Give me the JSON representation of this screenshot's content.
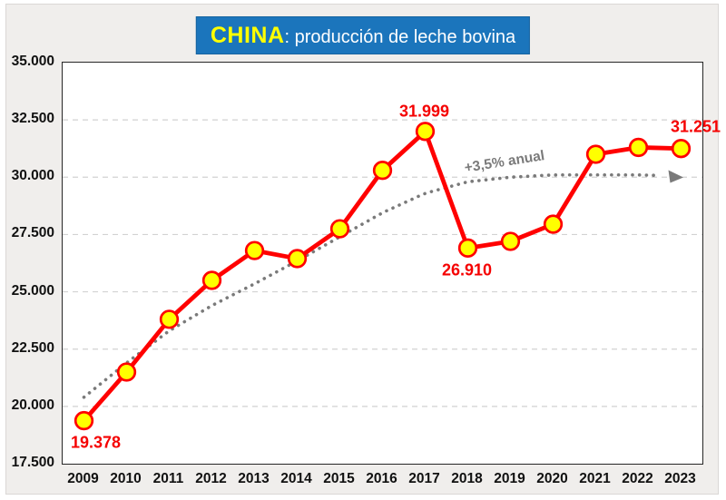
{
  "title": {
    "highlight": "CHINA",
    "rest": ": producción de leche bovina",
    "bg_color": "#1B75BC",
    "highlight_color": "#FFFF00",
    "text_color": "#FFFFFF"
  },
  "chart_data": {
    "type": "line",
    "title": "CHINA: producción de leche bovina",
    "categories": [
      "2009",
      "2010",
      "2011",
      "2012",
      "2013",
      "2014",
      "2015",
      "2016",
      "2017",
      "2018",
      "2019",
      "2020",
      "2021",
      "2022",
      "2023"
    ],
    "series": [
      {
        "name": "Producción de leche bovina",
        "color": "#FF0000",
        "marker": "circle",
        "marker_fill": "#FFFF00",
        "values": [
          19378,
          21500,
          23800,
          25500,
          26800,
          26450,
          27750,
          30300,
          31999,
          26910,
          27200,
          27950,
          31000,
          31300,
          31251
        ]
      }
    ],
    "point_labels": [
      {
        "year": "2009",
        "text": "19.378",
        "placement": "below-right"
      },
      {
        "year": "2017",
        "text": "31.999",
        "placement": "above"
      },
      {
        "year": "2018",
        "text": "26.910",
        "placement": "below"
      },
      {
        "year": "2023",
        "text": "31.251",
        "placement": "above-right"
      }
    ],
    "trend": {
      "label": "+3,5% anual",
      "style": "dotted",
      "color": "#7A7A7A",
      "arrow": true,
      "approx_values": [
        20400,
        21900,
        23300,
        24400,
        25350,
        26350,
        27400,
        28450,
        29300,
        29800,
        30000,
        30100,
        30100,
        30100,
        30050
      ]
    },
    "ylim": [
      17500,
      35000
    ],
    "y_tick_step": 2500,
    "y_ticks": [
      "35.000",
      "32.500",
      "30.000",
      "27.500",
      "25.000",
      "22.500",
      "20.000",
      "17.500"
    ],
    "grid": "dashed-horizontal",
    "label_color": "#F50000",
    "grid_color": "#D2D2D2"
  }
}
